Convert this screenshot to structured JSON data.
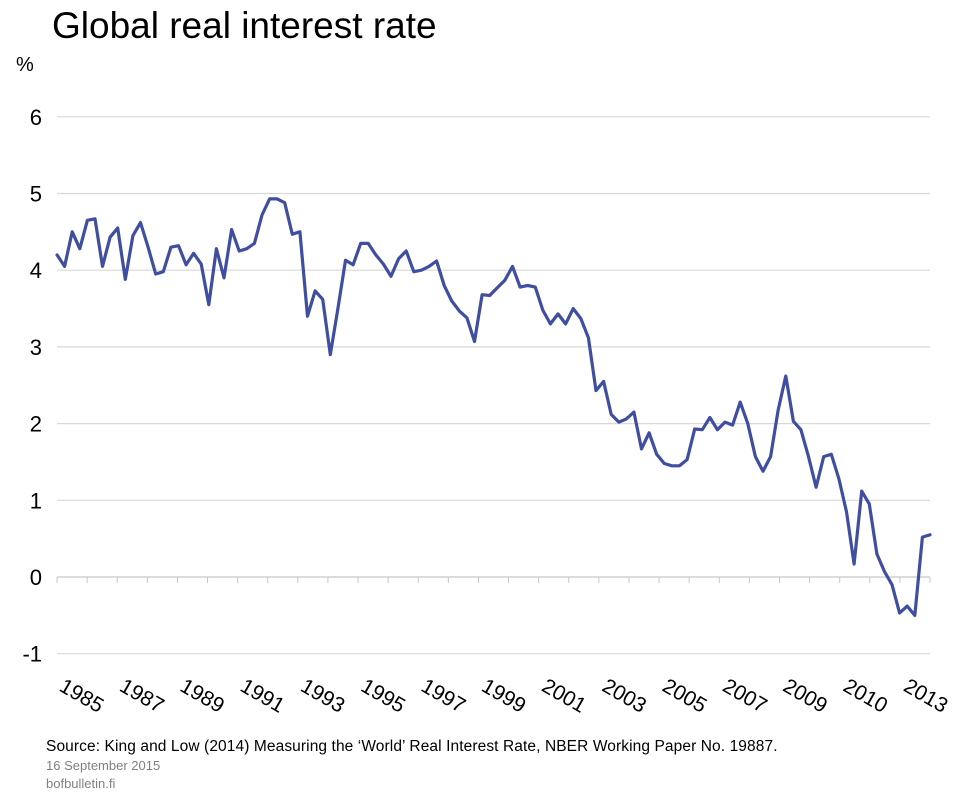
{
  "chart_data": {
    "type": "line",
    "title": "Global real interest rate",
    "ylabel": "%",
    "ylim": [
      -1,
      6
    ],
    "yticks": [
      6,
      5,
      4,
      3,
      2,
      1,
      0,
      -1
    ],
    "xticks": [
      "1985",
      "1987",
      "1989",
      "1991",
      "1993",
      "1995",
      "1997",
      "1999",
      "2001",
      "2003",
      "2005",
      "2007",
      "2009",
      "2010",
      "2013"
    ],
    "grid": true,
    "legend": "none",
    "line_color": "#3f4ea0",
    "values": [
      4.2,
      4.05,
      4.5,
      4.28,
      4.65,
      4.67,
      4.05,
      4.43,
      4.55,
      3.88,
      4.45,
      4.62,
      4.3,
      3.95,
      3.98,
      4.3,
      4.32,
      4.07,
      4.22,
      4.08,
      3.55,
      4.28,
      3.9,
      4.53,
      4.25,
      4.28,
      4.35,
      4.72,
      4.93,
      4.93,
      4.88,
      4.47,
      4.5,
      3.4,
      3.73,
      3.62,
      2.9,
      3.5,
      4.13,
      4.07,
      4.35,
      4.35,
      4.2,
      4.08,
      3.92,
      4.15,
      4.25,
      3.98,
      4.0,
      4.05,
      4.12,
      3.8,
      3.6,
      3.47,
      3.38,
      3.07,
      3.68,
      3.67,
      3.77,
      3.87,
      4.05,
      3.78,
      3.8,
      3.78,
      3.48,
      3.3,
      3.43,
      3.3,
      3.5,
      3.37,
      3.12,
      2.43,
      2.55,
      2.12,
      2.02,
      2.06,
      2.15,
      1.67,
      1.88,
      1.6,
      1.48,
      1.45,
      1.45,
      1.53,
      1.93,
      1.92,
      2.08,
      1.92,
      2.02,
      1.98,
      2.28,
      2.0,
      1.57,
      1.38,
      1.57,
      2.18,
      2.62,
      2.03,
      1.92,
      1.57,
      1.17,
      1.57,
      1.6,
      1.28,
      0.85,
      0.17,
      1.12,
      0.95,
      0.3,
      0.07,
      -0.1,
      -0.47,
      -0.38,
      -0.5,
      0.52,
      0.55
    ]
  },
  "footer": {
    "source": "Source: King and Low (2014) Measuring the ‘World’ Real Interest Rate, NBER Working Paper No. 19887.",
    "date": "16 September 2015",
    "site": "bofbulletin.fi"
  }
}
